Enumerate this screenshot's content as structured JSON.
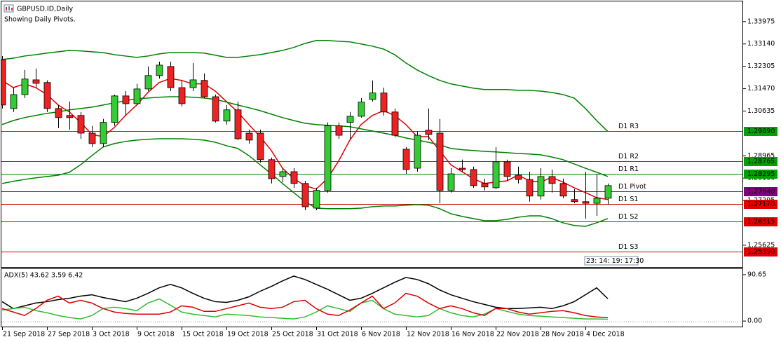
{
  "chart_data": [
    {
      "type": "candlestick",
      "title": "GBPUSD.ID,Daily",
      "subtitle": "Showing Daily Pivots.",
      "timer": "23: 14: 19: 17:30",
      "categories": [
        "21 Sep 2018",
        null,
        null,
        null,
        "27 Sep 2018",
        null,
        null,
        null,
        "3 Oct 2018",
        null,
        null,
        null,
        "9 Oct 2018",
        null,
        null,
        null,
        "15 Oct 2018",
        null,
        null,
        null,
        "19 Oct 2018",
        null,
        null,
        null,
        "25 Oct 2018",
        null,
        null,
        null,
        "31 Oct 2018",
        null,
        null,
        null,
        "6 Nov 2018",
        null,
        null,
        null,
        "12 Nov 2018",
        null,
        null,
        null,
        "16 Nov 2018",
        null,
        null,
        null,
        "22 Nov 2018",
        null,
        null,
        null,
        "28 Nov 2018",
        null,
        null,
        null,
        "4 Dec 2018",
        null,
        null
      ],
      "open": [
        1.3256,
        1.3073,
        1.3125,
        1.318,
        1.317,
        1.3073,
        1.3047,
        1.3047,
        1.2981,
        1.2942,
        1.3021,
        1.312,
        1.3091,
        1.3146,
        1.3196,
        1.323,
        1.3151,
        1.3151,
        1.3178,
        1.3117,
        1.3026,
        1.3068,
        1.2981,
        1.2981,
        1.2882,
        1.2819,
        1.2837,
        1.2793,
        1.2701,
        1.2767,
        1.3008,
        1.3021,
        1.3044,
        1.3107,
        1.3131,
        1.306,
        1.2921,
        1.285,
        1.2992,
        1.2981,
        1.2767,
        1.285,
        1.2845,
        1.2793,
        1.2777,
        1.2874,
        1.2824,
        1.2808,
        1.2746,
        1.2819,
        1.2793,
        1.2733,
        1.2725,
        1.2719,
        1.2738
      ],
      "high": [
        1.3269,
        1.3151,
        1.3217,
        1.3222,
        1.3178,
        1.3086,
        1.3099,
        1.306,
        1.3008,
        1.3034,
        1.3125,
        1.3138,
        1.3165,
        1.323,
        1.3248,
        1.3248,
        1.3178,
        1.3243,
        1.3204,
        1.3125,
        1.3086,
        1.3099,
        1.2994,
        1.2994,
        1.289,
        1.285,
        1.285,
        1.2803,
        1.2777,
        1.3021,
        1.3021,
        1.306,
        1.3112,
        1.3178,
        1.3151,
        1.3073,
        1.2929,
        1.2987,
        1.3073,
        1.3034,
        1.285,
        1.2882,
        1.2856,
        1.2811,
        1.2929,
        1.2882,
        1.2856,
        1.2837,
        1.285,
        1.2845,
        1.2811,
        1.2772,
        1.2837,
        1.2829,
        1.2793
      ],
      "low": [
        1.3073,
        1.306,
        1.3112,
        1.3151,
        1.306,
        1.3,
        1.2994,
        1.296,
        1.2929,
        1.2929,
        1.3008,
        1.3047,
        1.3086,
        1.3138,
        1.3185,
        1.3138,
        1.3081,
        1.3138,
        1.3112,
        1.3021,
        1.3013,
        1.2955,
        1.2942,
        1.2871,
        1.2793,
        1.2798,
        1.2777,
        1.2693,
        1.2693,
        1.2759,
        1.296,
        1.296,
        1.3039,
        1.3099,
        1.3047,
        1.2966,
        1.2829,
        1.2837,
        1.2955,
        1.2719,
        1.2759,
        1.2837,
        1.2777,
        1.2767,
        1.2772,
        1.2803,
        1.2793,
        1.2725,
        1.2733,
        1.2759,
        1.2738,
        1.2719,
        1.2662,
        1.2672,
        1.2714
      ],
      "close": [
        1.3086,
        1.3125,
        1.3183,
        1.3167,
        1.3073,
        1.3039,
        1.3039,
        1.2981,
        1.2942,
        1.3021,
        1.312,
        1.3091,
        1.3146,
        1.3196,
        1.3235,
        1.3151,
        1.3091,
        1.318,
        1.3117,
        1.3026,
        1.3068,
        1.296,
        1.2955,
        1.2882,
        1.2811,
        1.2837,
        1.2793,
        1.2706,
        1.2767,
        1.3008,
        1.2973,
        1.3044,
        1.3097,
        1.3131,
        1.306,
        1.2973,
        1.2845,
        1.2973,
        1.2976,
        1.2767,
        1.2829,
        1.2845,
        1.2785,
        1.278,
        1.2874,
        1.2819,
        1.2808,
        1.2746,
        1.2819,
        1.2793,
        1.2746,
        1.2725,
        1.2719,
        1.2738,
        1.2785
      ],
      "up_color": "#33cc33",
      "down_color": "#ee2222",
      "series": [
        {
          "color": "#e00000",
          "values": [
            1.3178,
            1.3151,
            1.3165,
            1.3151,
            1.3125,
            1.3086,
            1.306,
            1.3021,
            1.2976,
            1.2968,
            1.3002,
            1.3047,
            1.3086,
            1.3133,
            1.317,
            1.3185,
            1.3178,
            1.3165,
            1.3165,
            1.3138,
            1.3099,
            1.306,
            1.3013,
            1.2968,
            1.2916,
            1.285,
            1.2811,
            1.2785,
            1.2772,
            1.2811,
            1.2877,
            1.2955,
            1.3013,
            1.3047,
            1.3065,
            1.3047,
            1.3013,
            1.2968,
            1.2968,
            1.2916,
            1.2863,
            1.2837,
            1.2811,
            1.2793,
            1.2798,
            1.2803,
            1.2824,
            1.2803,
            1.2798,
            1.2816,
            1.2798,
            1.2777,
            1.2759,
            1.274,
            1.2733
          ]
        },
        {
          "color": "#008000",
          "values": [
            1.3256,
            1.3261,
            1.3269,
            1.3274,
            1.328,
            1.3285,
            1.329,
            1.3288,
            1.3285,
            1.3282,
            1.3274,
            1.3269,
            1.3264,
            1.3269,
            1.3277,
            1.3282,
            1.3282,
            1.3282,
            1.328,
            1.3272,
            1.3264,
            1.3264,
            1.3269,
            1.3274,
            1.3282,
            1.329,
            1.3301,
            1.3316,
            1.3327,
            1.3327,
            1.3324,
            1.3322,
            1.3314,
            1.3306,
            1.3295,
            1.3274,
            1.3243,
            1.3217,
            1.3196,
            1.3178,
            1.3165,
            1.3157,
            1.3149,
            1.3144,
            1.3144,
            1.3144,
            1.3141,
            1.3141,
            1.3138,
            1.3133,
            1.3125,
            1.3112,
            1.3073,
            1.3028,
            1.2987
          ]
        },
        {
          "color": "#008000",
          "values": [
            1.3013,
            1.3028,
            1.3039,
            1.3047,
            1.3055,
            1.306,
            1.3068,
            1.3073,
            1.3078,
            1.3086,
            1.3094,
            1.3102,
            1.311,
            1.3112,
            1.3115,
            1.3117,
            1.3117,
            1.3115,
            1.3112,
            1.3107,
            1.3097,
            1.3086,
            1.3076,
            1.3065,
            1.3052,
            1.3039,
            1.3028,
            1.3018,
            1.3013,
            1.301,
            1.3008,
            1.3005,
            1.2997,
            1.2989,
            1.2981,
            1.2973,
            1.2963,
            1.2955,
            1.2947,
            1.2937,
            1.2924,
            1.2919,
            1.2916,
            1.2913,
            1.2911,
            1.2908,
            1.2905,
            1.2903,
            1.29,
            1.2892,
            1.2882,
            1.2866,
            1.285,
            1.2835,
            1.2819
          ]
        },
        {
          "color": "#008000",
          "values": [
            1.2793,
            1.2801,
            1.2808,
            1.2814,
            1.2819,
            1.2824,
            1.2835,
            1.2863,
            1.2897,
            1.2929,
            1.2942,
            1.295,
            1.2955,
            1.2958,
            1.296,
            1.296,
            1.296,
            1.2958,
            1.2955,
            1.2947,
            1.2934,
            1.2924,
            1.2897,
            1.2863,
            1.2829,
            1.2793,
            1.2759,
            1.2725,
            1.2701,
            1.2699,
            1.2699,
            1.2699,
            1.2701,
            1.2706,
            1.2709,
            1.2709,
            1.2712,
            1.2714,
            1.2712,
            1.2699,
            1.268,
            1.267,
            1.2662,
            1.2654,
            1.2654,
            1.2659,
            1.2667,
            1.2672,
            1.2672,
            1.2662,
            1.2646,
            1.2636,
            1.2633,
            1.2646,
            1.2662
          ]
        }
      ],
      "levels": [
        {
          "name": "D1 R3",
          "value": 1.2989,
          "value_label": "1.29890",
          "color": "#008000",
          "badge": "#00a000"
        },
        {
          "name": "D1 R2",
          "value": 1.28765,
          "value_label": "1.28765",
          "color": "#008000",
          "badge": "#00a000"
        },
        {
          "name": "D1 R1",
          "value": 1.28295,
          "value_label": "1.28295",
          "color": "#008000",
          "badge": "#00a000"
        },
        {
          "name": "D1 Pivot",
          "value": 1.2764,
          "value_label": "1.27640",
          "color": "#800080",
          "badge": "#800080"
        },
        {
          "name": "D1 S1",
          "value": 1.2717,
          "value_label": "1.27170",
          "color": "#cc0000",
          "badge": "#e00000"
        },
        {
          "name": "D1 S2",
          "value": 1.26515,
          "value_label": "1.26515",
          "color": "#cc0000",
          "badge": "#e00000"
        },
        {
          "name": "D1 S3",
          "value": 1.2539,
          "value_label": "1.25390",
          "color": "#cc0000",
          "badge": "#e00000"
        }
      ],
      "ylim": [
        1.2481,
        1.3473
      ],
      "yticks": [
        {
          "value": 1.33975,
          "label": "1.33975"
        },
        {
          "value": 1.3314,
          "label": "1.33140"
        },
        {
          "value": 1.32305,
          "label": "1.32305"
        },
        {
          "value": 1.3147,
          "label": "1.31470"
        },
        {
          "value": 1.30635,
          "label": "1.30635"
        },
        {
          "value": 1.28965,
          "label": "1.28965"
        },
        {
          "value": 1.2813,
          "label": "1.28130"
        },
        {
          "value": 1.27295,
          "label": "1.27295"
        },
        {
          "value": 1.25625,
          "label": "1.25625"
        }
      ]
    },
    {
      "type": "line",
      "title": "ADX(5) 43.62 3.59 6.42",
      "series": [
        {
          "color": "#000000",
          "values": [
            37.9,
            24.4,
            29.8,
            35.2,
            37.9,
            41.9,
            44.6,
            48.7,
            51.4,
            46.0,
            41.9,
            37.9,
            44.6,
            54.1,
            64.9,
            71.7,
            64.9,
            54.1,
            44.6,
            37.9,
            36.5,
            40.6,
            47.4,
            58.2,
            67.7,
            78.5,
            87.9,
            81.2,
            71.7,
            62.2,
            51.4,
            40.6,
            44.6,
            54.1,
            64.9,
            75.8,
            85.2,
            81.2,
            73.1,
            60.9,
            51.4,
            44.6,
            37.9,
            32.5,
            27.1,
            24.4,
            24.4,
            25.7,
            27.1,
            24.4,
            29.8,
            37.9,
            51.4,
            64.9,
            43.62
          ]
        },
        {
          "color": "#33bb33",
          "values": [
            21.6,
            24.4,
            27.1,
            20.3,
            16.2,
            10.8,
            6.8,
            4.1,
            10.8,
            24.4,
            27.1,
            24.4,
            20.3,
            35.2,
            43.3,
            31.1,
            17.6,
            13.5,
            10.8,
            8.1,
            13.5,
            12.2,
            10.8,
            8.1,
            6.8,
            5.4,
            4.1,
            8.1,
            17.6,
            29.8,
            24.4,
            18.9,
            35.2,
            40.6,
            24.4,
            13.5,
            10.8,
            8.1,
            10.8,
            24.4,
            16.2,
            10.8,
            8.1,
            13.5,
            24.4,
            18.9,
            13.5,
            10.8,
            9.5,
            8.1,
            6.8,
            5.4,
            4.1,
            4.1,
            3.59
          ]
        },
        {
          "color": "#dd0000",
          "values": [
            24.4,
            17.6,
            10.8,
            24.4,
            40.6,
            48.7,
            35.2,
            40.6,
            35.2,
            24.4,
            17.6,
            14.9,
            13.5,
            13.5,
            13.5,
            17.6,
            29.8,
            27.1,
            18.9,
            18.9,
            24.4,
            29.8,
            35.2,
            27.1,
            24.4,
            27.1,
            37.9,
            40.6,
            24.4,
            13.5,
            10.8,
            21.6,
            35.2,
            48.7,
            24.4,
            35.2,
            54.1,
            48.7,
            35.2,
            24.4,
            29.8,
            24.4,
            16.2,
            10.8,
            24.4,
            24.4,
            17.6,
            13.5,
            16.2,
            18.9,
            20.3,
            16.2,
            10.8,
            8.1,
            6.42
          ]
        }
      ],
      "ylim": [
        -10.8,
        101.5
      ],
      "yticks": [
        90.65,
        {
          "value": 0,
          "label": "0.00"
        }
      ]
    }
  ]
}
